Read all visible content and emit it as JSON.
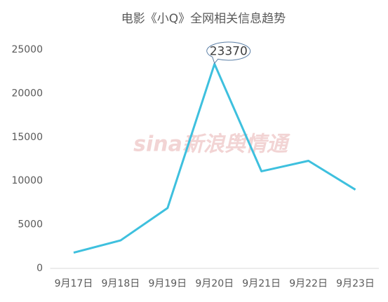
{
  "chart_data": {
    "type": "line",
    "title": "电影《小Q》全网相关信息趋势",
    "categories": [
      "9月17日",
      "9月18日",
      "9月19日",
      "9月20日",
      "9月21日",
      "9月22日",
      "9月23日"
    ],
    "values": [
      1800,
      3200,
      6900,
      23370,
      11100,
      12300,
      9000
    ],
    "color": "#3ec0de",
    "ylim": [
      0,
      25000
    ],
    "yticks": [
      0,
      5000,
      10000,
      15000,
      20000,
      25000
    ],
    "grid": false,
    "watermark": "sina新浪舆情通"
  }
}
